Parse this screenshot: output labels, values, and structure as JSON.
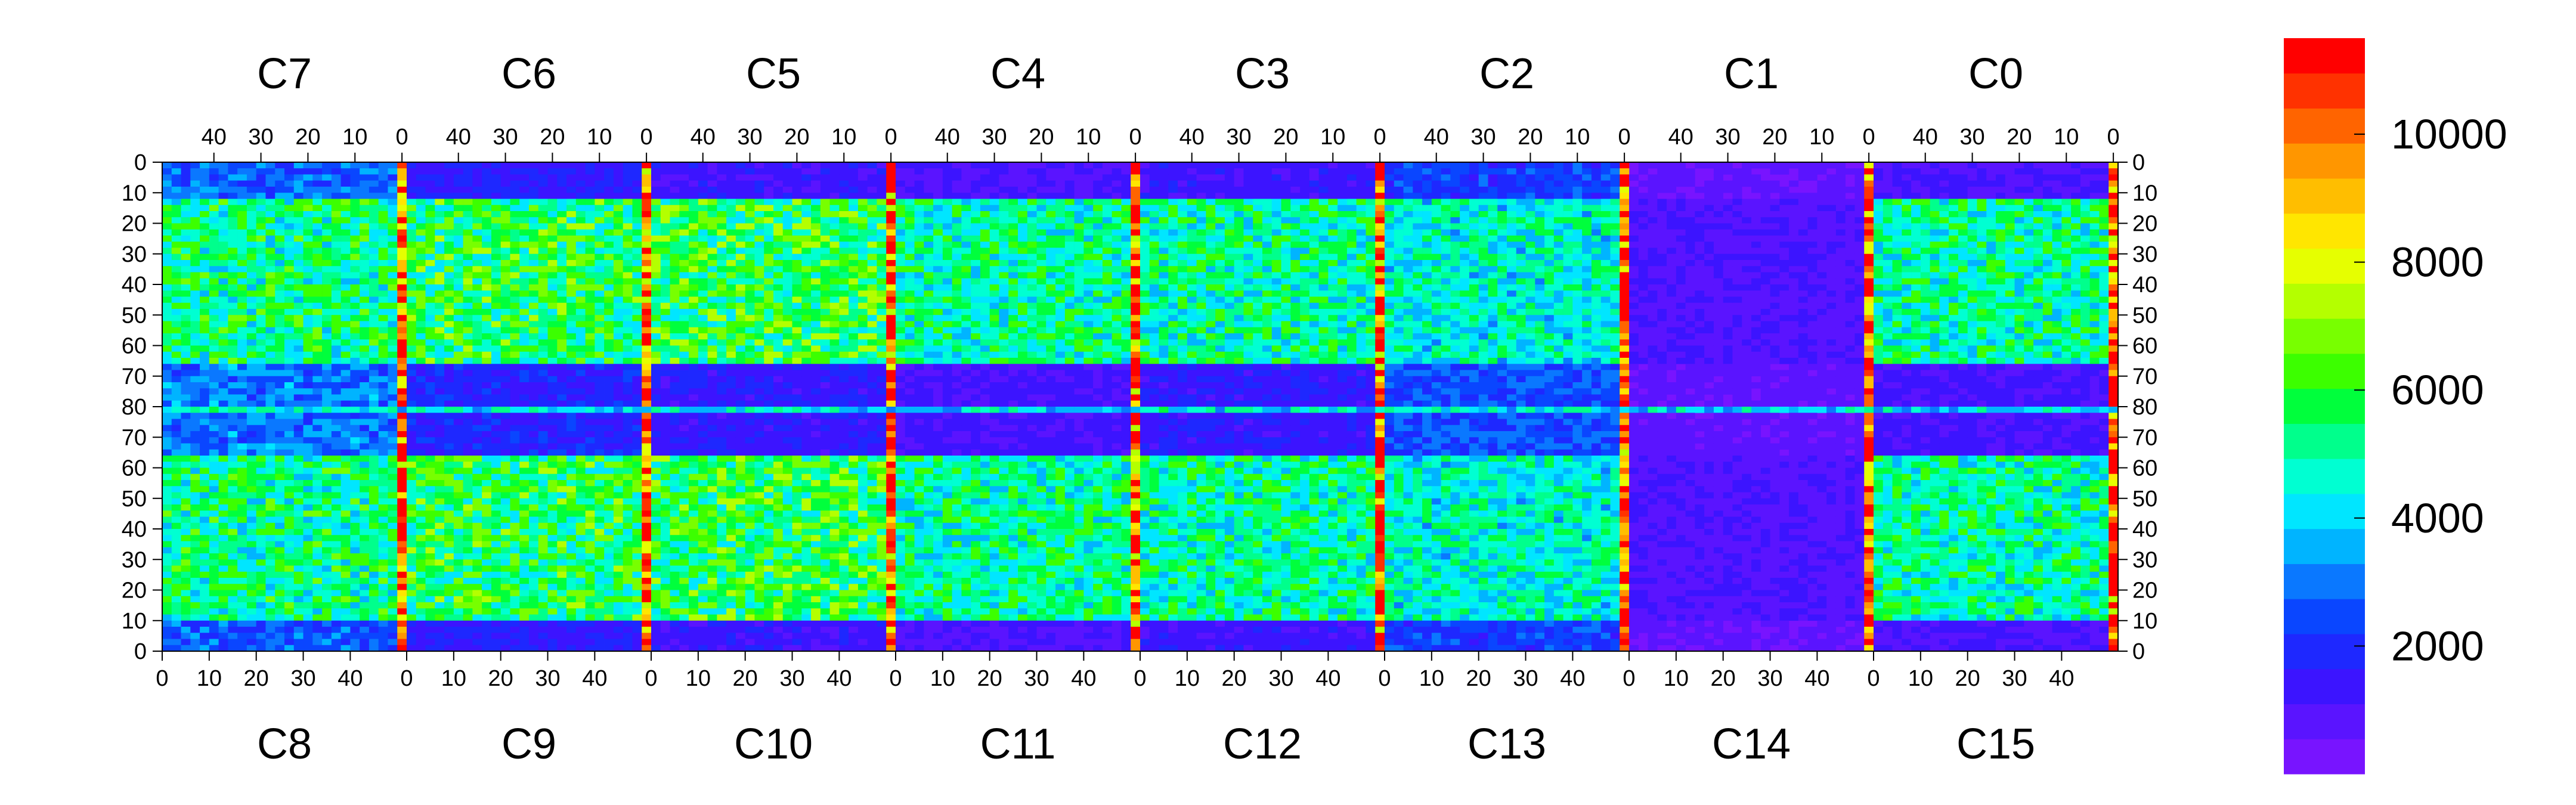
{
  "chart_data": {
    "type": "heatmap",
    "title": "",
    "xlabel": "",
    "ylabel": "",
    "chips_top": [
      "C7",
      "C6",
      "C5",
      "C4",
      "C3",
      "C2",
      "C1",
      "C0"
    ],
    "chips_bottom": [
      "C8",
      "C9",
      "C10",
      "C11",
      "C12",
      "C13",
      "C14",
      "C15"
    ],
    "top_x_ticks": [
      "40",
      "30",
      "20",
      "10",
      "0"
    ],
    "bottom_x_ticks": [
      "0",
      "10",
      "20",
      "30",
      "40"
    ],
    "y_ticks_top_half": [
      "0",
      "10",
      "20",
      "30",
      "40",
      "50",
      "60",
      "70"
    ],
    "y_tick_center": "80",
    "y_ticks_bottom_half": [
      "70",
      "60",
      "50",
      "40",
      "30",
      "20",
      "10",
      "0"
    ],
    "columns_per_chip": 52,
    "rows": 160,
    "zlim": [
      0,
      11500
    ],
    "colorbar_ticks": [
      "2000",
      "4000",
      "6000",
      "8000",
      "10000"
    ],
    "palette": [
      "#7814ff",
      "#5a14ff",
      "#3c14ff",
      "#1e28ff",
      "#0a46ff",
      "#0a78ff",
      "#00b4ff",
      "#00e6ff",
      "#00ffd2",
      "#00ff8c",
      "#00ff3c",
      "#3cff00",
      "#78ff00",
      "#b4ff00",
      "#e6ff00",
      "#ffe600",
      "#ffbe00",
      "#ff9600",
      "#ff6400",
      "#ff3200",
      "#ff0000"
    ],
    "chip_profiles": [
      {
        "chip": "C7/C8",
        "mean_edge": 5200,
        "mean_mid": 3000
      },
      {
        "chip": "C6/C9",
        "mean_edge": 5600,
        "mean_mid": 1800
      },
      {
        "chip": "C5/C10",
        "mean_edge": 5800,
        "mean_mid": 1500
      },
      {
        "chip": "C4/C11",
        "mean_edge": 5000,
        "mean_mid": 1200
      },
      {
        "chip": "C3/C12",
        "mean_edge": 5000,
        "mean_mid": 1500
      },
      {
        "chip": "C2/C13",
        "mean_edge": 4600,
        "mean_mid": 2500
      },
      {
        "chip": "C1/C14",
        "mean_edge": 1000,
        "mean_mid": 700
      },
      {
        "chip": "C0/C15",
        "mean_edge": 5000,
        "mean_mid": 1200
      }
    ],
    "hot_boundary_columns_mean": 10500,
    "colors": {
      "background": "#ffffff",
      "low": "#7814ff",
      "high": "#ff0000"
    }
  }
}
